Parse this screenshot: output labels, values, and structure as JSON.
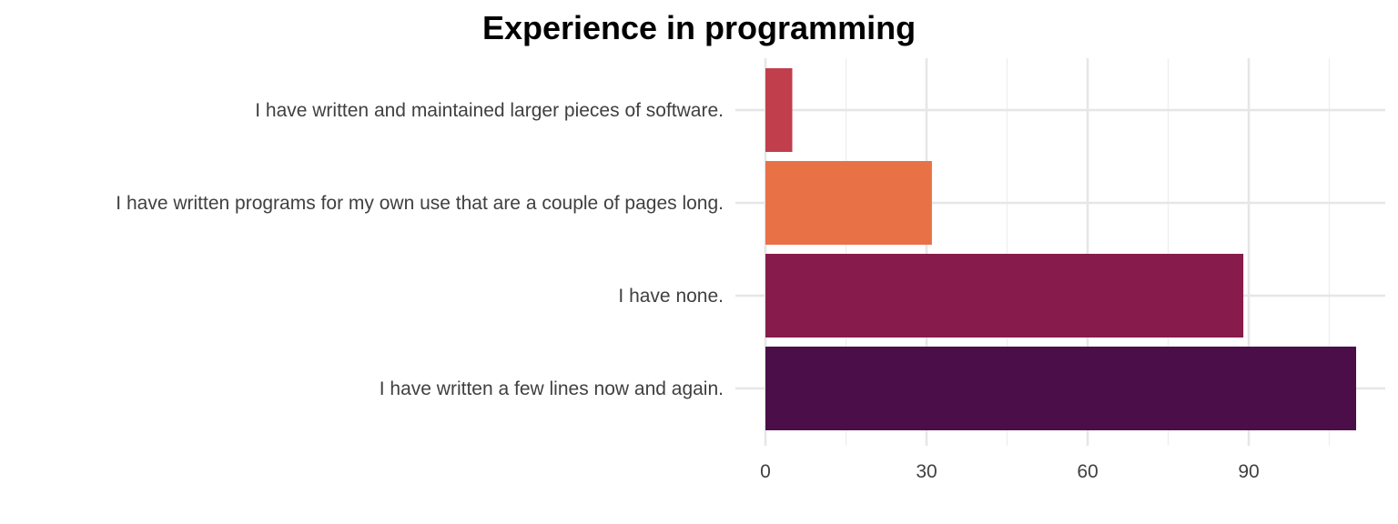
{
  "chart_data": {
    "type": "bar",
    "orientation": "horizontal",
    "title": "Experience in programming",
    "xlabel": "",
    "ylabel": "",
    "categories": [
      "I have written and maintained larger pieces of software.",
      "I have written programs for my own use that are a couple of pages long.",
      "I have none.",
      "I have written a few lines now and again."
    ],
    "values": [
      5,
      31,
      89,
      110
    ],
    "colors": [
      "#c13e4c",
      "#e97146",
      "#871b4c",
      "#4b0e48"
    ],
    "xlim": [
      0,
      113
    ],
    "xticks": [
      0,
      30,
      60,
      90
    ],
    "grid": true,
    "legend": "none"
  }
}
